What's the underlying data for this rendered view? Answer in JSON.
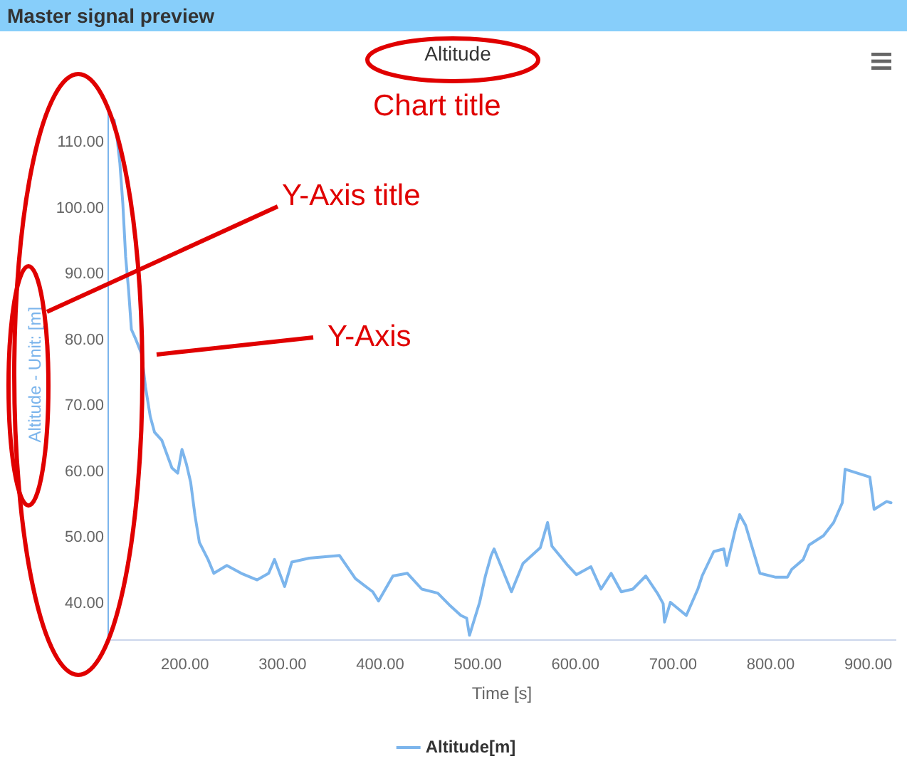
{
  "chart_data": {
    "type": "line",
    "title": "Altitude",
    "xlabel": "Time [s]",
    "ylabel": "Altitude - Unit: [m]",
    "annotations": [
      "Master signal preview",
      "Chart title",
      "Y-Axis title",
      "Y-Axis"
    ],
    "xlim": [
      121.5,
      928
    ],
    "ylim": [
      34.5,
      115
    ],
    "xticks": [
      {
        "value": 200,
        "label": "200.00"
      },
      {
        "value": 300,
        "label": "300.00"
      },
      {
        "value": 400,
        "label": "400.00"
      },
      {
        "value": 500,
        "label": "500.00"
      },
      {
        "value": 600,
        "label": "600.00"
      },
      {
        "value": 700,
        "label": "700.00"
      },
      {
        "value": 800,
        "label": "800.00"
      },
      {
        "value": 900,
        "label": "900.00"
      }
    ],
    "yticks": [
      {
        "value": 40,
        "label": "40.00"
      },
      {
        "value": 50,
        "label": "50.00"
      },
      {
        "value": 60,
        "label": "60.00"
      },
      {
        "value": 70,
        "label": "70.00"
      },
      {
        "value": 80,
        "label": "80.00"
      },
      {
        "value": 90,
        "label": "90.00"
      },
      {
        "value": 100,
        "label": "100.00"
      },
      {
        "value": 110,
        "label": "110.00"
      }
    ],
    "grid": false,
    "legend": "bottom",
    "marker": "none",
    "line_style": "solid",
    "series": [
      {
        "name": "Altitude[m]",
        "color": "#7cb5ec",
        "x": [
          127.5,
          130.4,
          133.4,
          136.4,
          139.3,
          142.3,
          145.2,
          149.7,
          155.6,
          159.6,
          164.5,
          168.9,
          176.3,
          182.2,
          186.7,
          192.6,
          197,
          201.5,
          205.9,
          210.4,
          214.8,
          223.7,
          229.6,
          242.9,
          257.7,
          274,
          285.8,
          291.8,
          302.1,
          309.5,
          327.3,
          358.4,
          374.6,
          392.4,
          398.3,
          413.1,
          427.9,
          442.7,
          459,
          472.3,
          482.7,
          488.6,
          491.5,
          501.9,
          507.8,
          513.7,
          516.7,
          534.5,
          546.3,
          564.1,
          571.5,
          576,
          592.2,
          601,
          615.9,
          626.2,
          636.6,
          647,
          658.8,
          672.1,
          683.9,
          689.9,
          691.3,
          697.3,
          713.6,
          725.4,
          729.8,
          741.7,
          752,
          755,
          763.9,
          768.3,
          774.3,
          789,
          805.3,
          817.1,
          821.6,
          833.4,
          839.4,
          854.1,
          864.5,
          873.4,
          876.3,
          901.6,
          906,
          918.8,
          923.3
        ],
        "values": [
          113.4,
          110.8,
          106.8,
          100.7,
          92.6,
          87.6,
          81.6,
          80.1,
          77.9,
          72.9,
          68.4,
          66,
          64.8,
          62.4,
          60.6,
          59.8,
          63.4,
          61.2,
          58.4,
          53.3,
          49.3,
          46.7,
          44.6,
          45.8,
          44.6,
          43.6,
          44.6,
          46.7,
          42.6,
          46.3,
          46.9,
          47.3,
          43.8,
          41.8,
          40.4,
          44.2,
          44.6,
          42.2,
          41.6,
          39.6,
          38.2,
          37.8,
          35.2,
          40.2,
          44.2,
          47.3,
          48.3,
          41.8,
          46.1,
          48.5,
          52.3,
          48.7,
          45.8,
          44.4,
          45.6,
          42.2,
          44.6,
          41.8,
          42.2,
          44.2,
          41.6,
          40,
          37.2,
          40.2,
          38.2,
          42.2,
          44.2,
          47.9,
          48.3,
          45.8,
          51.3,
          53.5,
          51.9,
          44.6,
          44,
          44,
          45.2,
          46.7,
          48.9,
          50.3,
          52.3,
          55.3,
          60.4,
          59.2,
          54.3,
          55.5,
          55.3
        ]
      }
    ]
  }
}
